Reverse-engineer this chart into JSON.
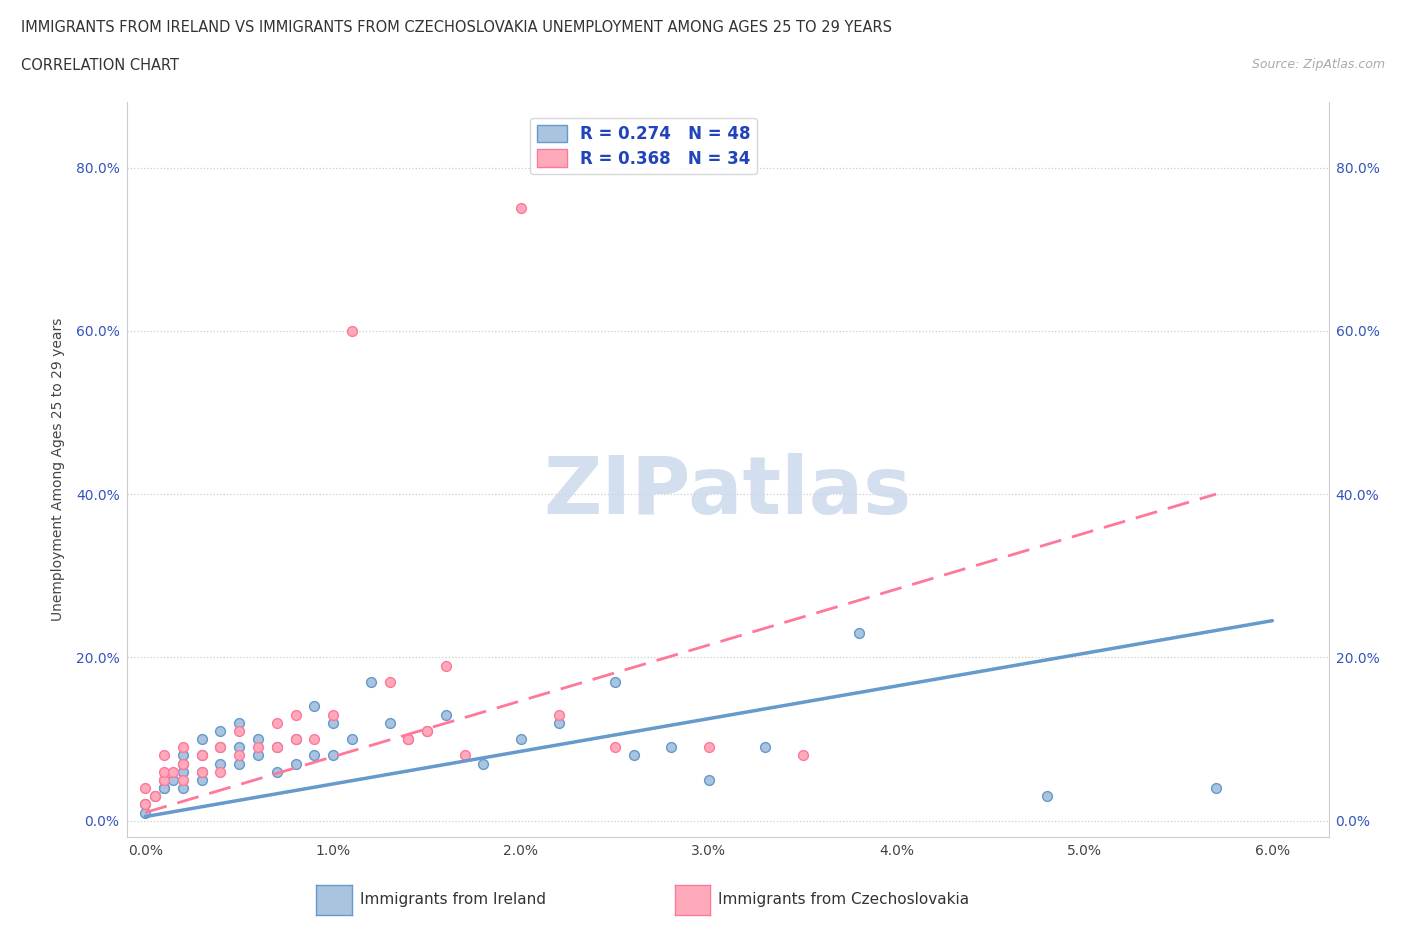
{
  "title_line1": "IMMIGRANTS FROM IRELAND VS IMMIGRANTS FROM CZECHOSLOVAKIA UNEMPLOYMENT AMONG AGES 25 TO 29 YEARS",
  "title_line2": "CORRELATION CHART",
  "source_text": "Source: ZipAtlas.com",
  "ylabel": "Unemployment Among Ages 25 to 29 years",
  "x_ticks": [
    0.0,
    0.01,
    0.02,
    0.03,
    0.04,
    0.05,
    0.06
  ],
  "x_tick_labels": [
    "0.0%",
    "1.0%",
    "2.0%",
    "3.0%",
    "4.0%",
    "5.0%",
    "6.0%"
  ],
  "y_ticks": [
    0.0,
    0.2,
    0.4,
    0.6,
    0.8
  ],
  "y_tick_labels": [
    "0.0%",
    "20.0%",
    "40.0%",
    "60.0%",
    "80.0%"
  ],
  "ireland_color": "#6699cc",
  "ireland_fill": "#aac4e0",
  "czecho_color": "#ff7799",
  "czecho_fill": "#ffaabb",
  "ireland_R": "0.274",
  "ireland_N": "48",
  "czecho_R": "0.368",
  "czecho_N": "34",
  "bottom_label_ireland": "Immigrants from Ireland",
  "bottom_label_czechoslovakia": "Immigrants from Czechoslovakia",
  "watermark": "ZIPatlas",
  "ireland_x": [
    0.0,
    0.0,
    0.0005,
    0.001,
    0.001,
    0.001,
    0.0015,
    0.002,
    0.002,
    0.002,
    0.002,
    0.003,
    0.003,
    0.003,
    0.003,
    0.004,
    0.004,
    0.004,
    0.005,
    0.005,
    0.005,
    0.006,
    0.006,
    0.007,
    0.007,
    0.008,
    0.008,
    0.009,
    0.009,
    0.01,
    0.01,
    0.011,
    0.012,
    0.013,
    0.014,
    0.015,
    0.016,
    0.018,
    0.02,
    0.022,
    0.025,
    0.026,
    0.028,
    0.03,
    0.033,
    0.038,
    0.048,
    0.057
  ],
  "ireland_y": [
    0.01,
    0.02,
    0.03,
    0.04,
    0.05,
    0.04,
    0.05,
    0.04,
    0.06,
    0.07,
    0.08,
    0.05,
    0.06,
    0.08,
    0.1,
    0.07,
    0.09,
    0.11,
    0.07,
    0.09,
    0.12,
    0.08,
    0.1,
    0.06,
    0.09,
    0.07,
    0.1,
    0.08,
    0.14,
    0.08,
    0.12,
    0.1,
    0.17,
    0.12,
    0.1,
    0.11,
    0.13,
    0.07,
    0.1,
    0.12,
    0.17,
    0.08,
    0.09,
    0.05,
    0.09,
    0.23,
    0.03,
    0.04
  ],
  "czecho_x": [
    0.0,
    0.0,
    0.0005,
    0.001,
    0.001,
    0.001,
    0.0015,
    0.002,
    0.002,
    0.002,
    0.003,
    0.003,
    0.004,
    0.004,
    0.005,
    0.005,
    0.006,
    0.007,
    0.007,
    0.008,
    0.008,
    0.009,
    0.01,
    0.011,
    0.013,
    0.014,
    0.015,
    0.016,
    0.017,
    0.02,
    0.022,
    0.025,
    0.03,
    0.035
  ],
  "czecho_y": [
    0.02,
    0.04,
    0.03,
    0.05,
    0.06,
    0.08,
    0.06,
    0.05,
    0.07,
    0.09,
    0.06,
    0.08,
    0.06,
    0.09,
    0.08,
    0.11,
    0.09,
    0.09,
    0.12,
    0.1,
    0.13,
    0.1,
    0.13,
    0.6,
    0.17,
    0.1,
    0.11,
    0.19,
    0.08,
    0.75,
    0.13,
    0.09,
    0.09,
    0.08
  ],
  "ireland_line_x": [
    0.0,
    0.06
  ],
  "ireland_line_y": [
    0.005,
    0.245
  ],
  "czecho_line_x": [
    0.0,
    0.057
  ],
  "czecho_line_y": [
    0.01,
    0.4
  ],
  "xlim": [
    -0.001,
    0.063
  ],
  "ylim": [
    -0.02,
    0.88
  ],
  "background_color": "#ffffff",
  "grid_color": "#cccccc",
  "legend_text_color": "#2244bb",
  "watermark_color": "#ccd9eb"
}
